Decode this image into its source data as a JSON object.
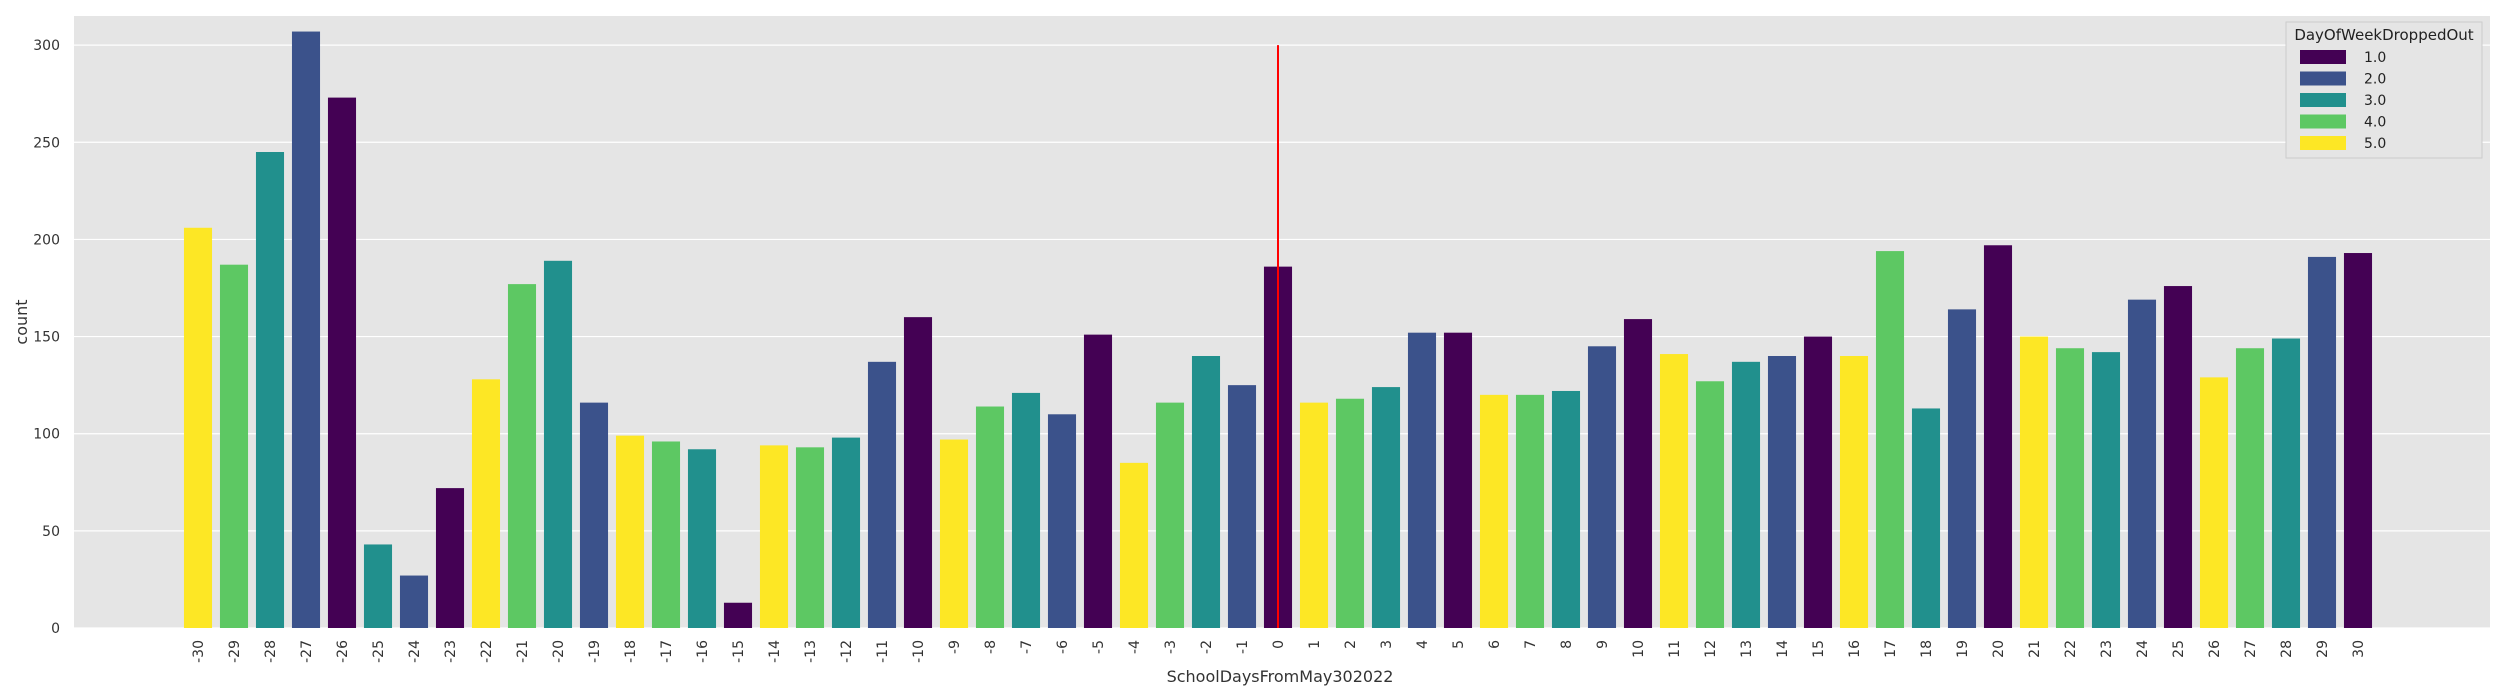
{
  "chart_data": {
    "type": "bar",
    "xlabel": "SchoolDaysFromMay302022",
    "ylabel": "count",
    "ylim": [
      0,
      315
    ],
    "yticks": [
      0,
      50,
      100,
      150,
      200,
      250,
      300
    ],
    "grid": true,
    "legend_position": "top-right",
    "legend": {
      "title": "DayOfWeekDroppedOut",
      "entries": [
        {
          "label": "1.0",
          "color": "#440154"
        },
        {
          "label": "2.0",
          "color": "#3b528b"
        },
        {
          "label": "3.0",
          "color": "#21908d"
        },
        {
          "label": "4.0",
          "color": "#5dc863"
        },
        {
          "label": "5.0",
          "color": "#fde725"
        }
      ]
    },
    "reference_line": {
      "x": "0",
      "y_from": 0,
      "y_to": 300,
      "color": "#ff0000"
    },
    "categories": [
      "-30",
      "-29",
      "-28",
      "-27",
      "-26",
      "-25",
      "-24",
      "-23",
      "-22",
      "-21",
      "-20",
      "-19",
      "-18",
      "-17",
      "-16",
      "-15",
      "-14",
      "-13",
      "-12",
      "-11",
      "-10",
      "-9",
      "-8",
      "-7",
      "-6",
      "-5",
      "-4",
      "-3",
      "-2",
      "-1",
      "0",
      "1",
      "2",
      "3",
      "4",
      "5",
      "6",
      "7",
      "8",
      "9",
      "10",
      "11",
      "12",
      "13",
      "14",
      "15",
      "16",
      "17",
      "18",
      "19",
      "20",
      "21",
      "22",
      "23",
      "24",
      "25",
      "26",
      "27",
      "28",
      "29",
      "30"
    ],
    "values": [
      206,
      187,
      245,
      307,
      273,
      43,
      27,
      72,
      128,
      177,
      189,
      116,
      99,
      96,
      92,
      13,
      94,
      93,
      98,
      137,
      160,
      97,
      114,
      121,
      110,
      151,
      85,
      116,
      140,
      125,
      186,
      116,
      118,
      124,
      152,
      152,
      120,
      120,
      122,
      145,
      159,
      141,
      127,
      137,
      140,
      150,
      140,
      194,
      113,
      164,
      197,
      150,
      144,
      142,
      169,
      176,
      129,
      144,
      149,
      191,
      193
    ],
    "day_of_week": [
      "5.0",
      "4.0",
      "3.0",
      "2.0",
      "1.0",
      "3.0",
      "2.0",
      "1.0",
      "5.0",
      "4.0",
      "3.0",
      "2.0",
      "5.0",
      "4.0",
      "3.0",
      "1.0",
      "5.0",
      "4.0",
      "3.0",
      "2.0",
      "1.0",
      "5.0",
      "4.0",
      "3.0",
      "2.0",
      "1.0",
      "5.0",
      "4.0",
      "3.0",
      "2.0",
      "1.0",
      "5.0",
      "4.0",
      "3.0",
      "2.0",
      "1.0",
      "5.0",
      "4.0",
      "3.0",
      "2.0",
      "1.0",
      "5.0",
      "4.0",
      "3.0",
      "2.0",
      "1.0",
      "5.0",
      "4.0",
      "3.0",
      "2.0",
      "1.0",
      "5.0",
      "4.0",
      "3.0",
      "2.0",
      "1.0",
      "5.0",
      "4.0",
      "3.0",
      "2.0",
      "1.0"
    ]
  },
  "colors": {
    "plot_background": "#e5e5e5",
    "grid": "#ffffff"
  }
}
